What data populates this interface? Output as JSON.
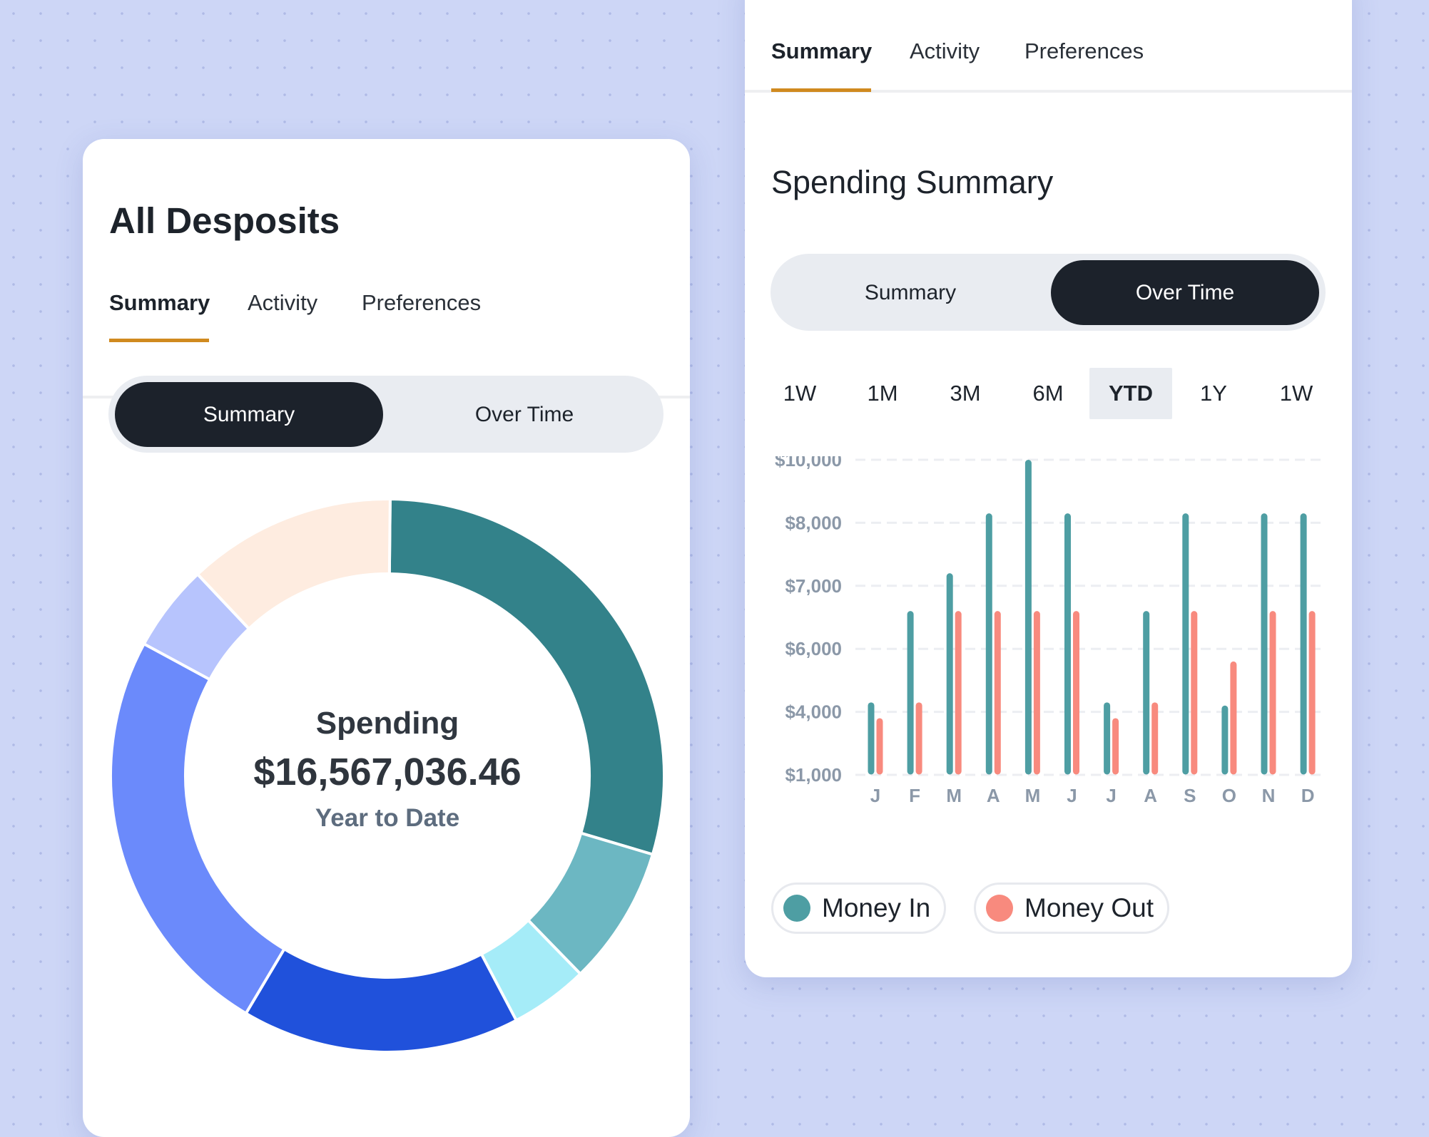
{
  "left_card": {
    "title": "All Desposits",
    "tabs": [
      {
        "label": "Summary",
        "active": true
      },
      {
        "label": "Activity",
        "active": false
      },
      {
        "label": "Preferences",
        "active": false
      }
    ],
    "toggle": [
      {
        "label": "Summary",
        "active": true
      },
      {
        "label": "Over Time",
        "active": false
      }
    ],
    "donut": {
      "label": "Spending",
      "amount": "$16,567,036.46",
      "period": "Year to Date"
    }
  },
  "right_card": {
    "tabs": [
      {
        "label": "Summary",
        "active": true
      },
      {
        "label": "Activity",
        "active": false
      },
      {
        "label": "Preferences",
        "active": false
      }
    ],
    "title": "Spending Summary",
    "toggle": [
      {
        "label": "Summary",
        "active": false
      },
      {
        "label": "Over Time",
        "active": true
      }
    ],
    "ranges": [
      {
        "label": "1W",
        "active": false
      },
      {
        "label": "1M",
        "active": false
      },
      {
        "label": "3M",
        "active": false
      },
      {
        "label": "6M",
        "active": false
      },
      {
        "label": "YTD",
        "active": true
      },
      {
        "label": "1Y",
        "active": false
      },
      {
        "label": "1W",
        "active": false
      }
    ],
    "legend": [
      {
        "label": "Money In",
        "color": "#4e9ea3"
      },
      {
        "label": "Money Out",
        "color": "#f88a7e"
      }
    ]
  },
  "chart_data": [
    {
      "type": "pie",
      "title": "",
      "slices": [
        {
          "value": 29,
          "color": "#33828a"
        },
        {
          "value": 8,
          "color": "#6cb7c2"
        },
        {
          "value": 4.5,
          "color": "#a5ecf8"
        },
        {
          "value": 16,
          "color": "#2051db"
        },
        {
          "value": 24,
          "color": "#6b8afb"
        },
        {
          "value": 5,
          "color": "#b7c4fd"
        },
        {
          "value": 12,
          "color": "#feece0"
        }
      ]
    },
    {
      "type": "bar",
      "categories": [
        "J",
        "F",
        "M",
        "A",
        "M",
        "J",
        "J",
        "A",
        "S",
        "O",
        "N",
        "D"
      ],
      "y_ticks": [
        "$10,000",
        "$8,000",
        "$7,000",
        "$6,000",
        "$4,000",
        "$1,000"
      ],
      "y_tick_values": [
        10000,
        8000,
        7000,
        6000,
        4000,
        1000
      ],
      "ylim": [
        1000,
        10000
      ],
      "grid": true,
      "series": [
        {
          "name": "Money In",
          "color": "#4e9ea3",
          "values": [
            4300,
            6600,
            7200,
            8300,
            10000,
            8300,
            4300,
            6600,
            8300,
            4200,
            8300,
            8300
          ]
        },
        {
          "name": "Money Out",
          "color": "#f88a7e",
          "values": [
            3700,
            4300,
            6600,
            6600,
            6600,
            6600,
            3700,
            4300,
            6600,
            5600,
            6600,
            6600
          ]
        }
      ]
    }
  ]
}
